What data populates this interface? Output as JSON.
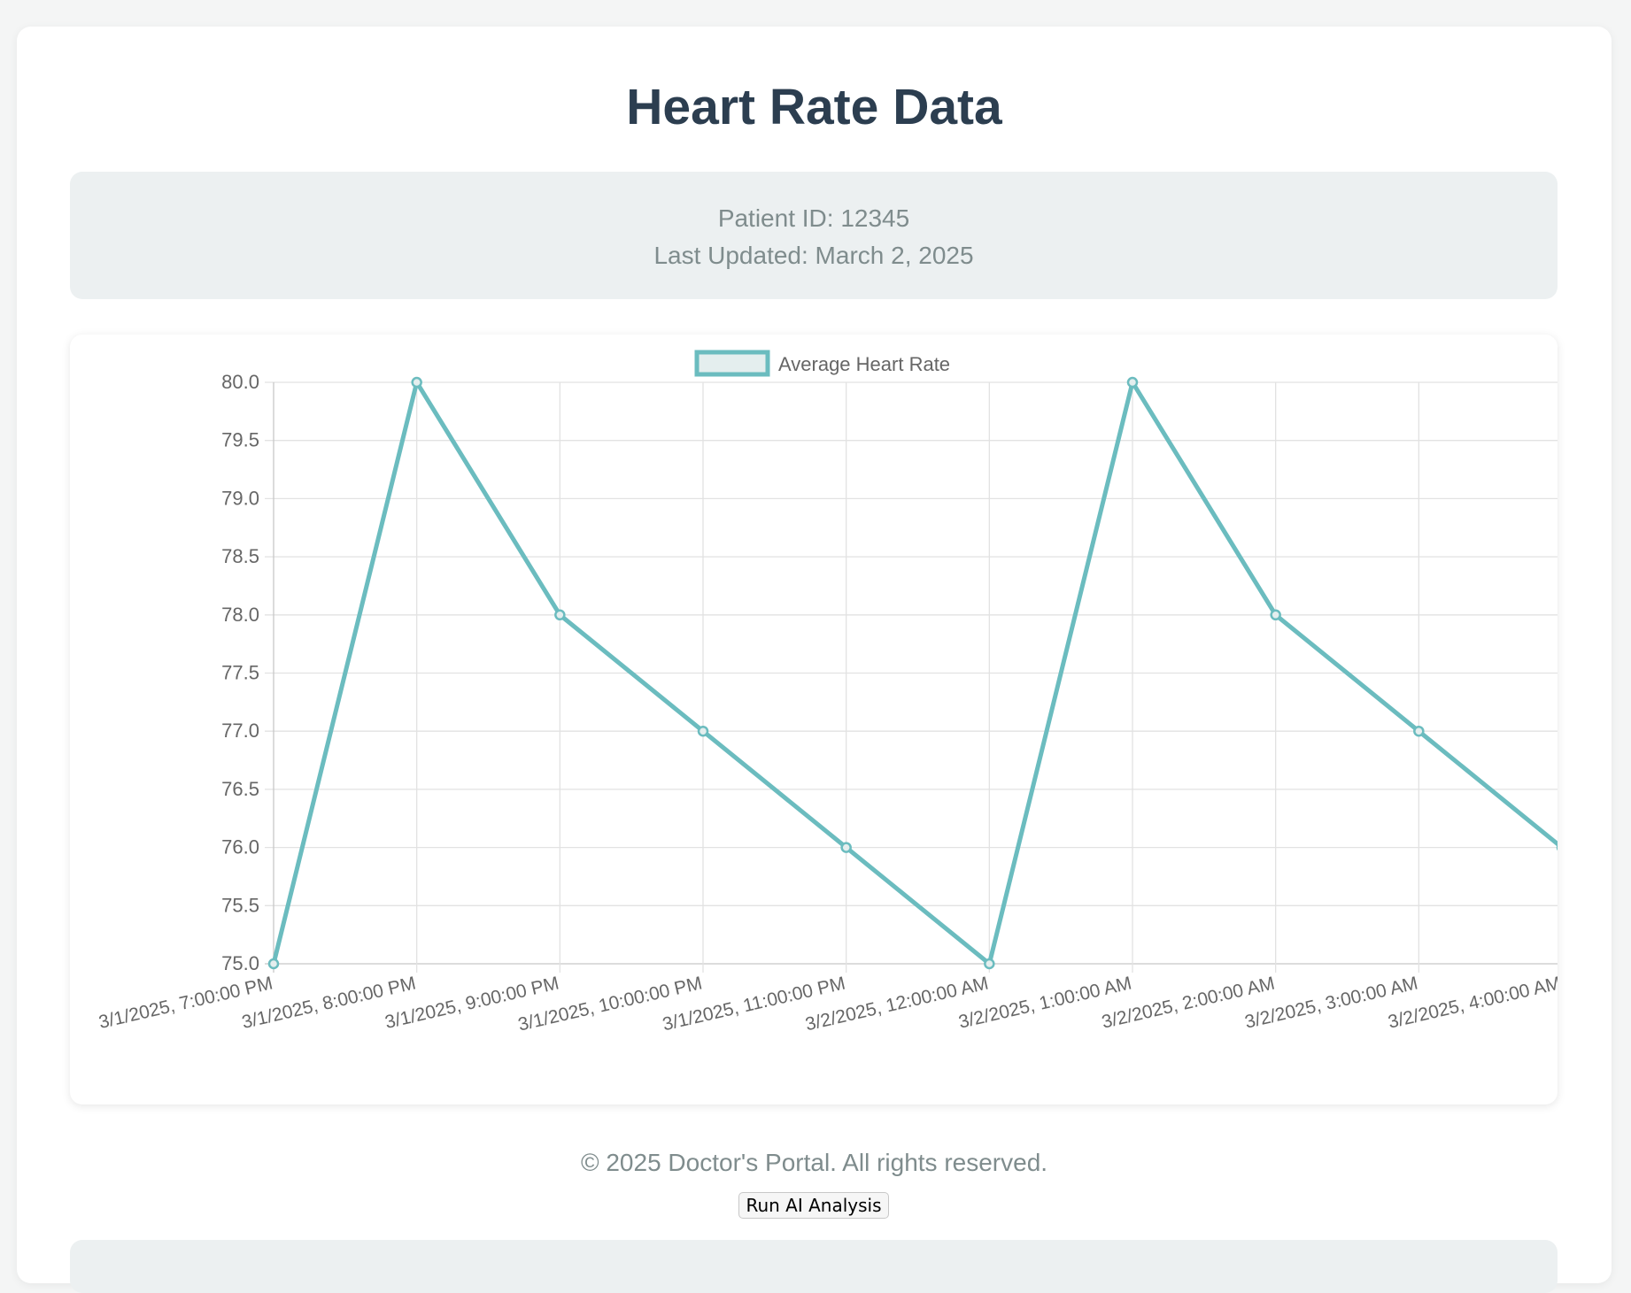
{
  "page": {
    "title": "Heart Rate Data"
  },
  "patient": {
    "id_text": "Patient ID: 12345",
    "updated_text": "Last Updated: March 2, 2025"
  },
  "colors": {
    "series": "#6bbcbf",
    "title": "#2c3e50",
    "muted": "#7f8c8d"
  },
  "chart_data": {
    "type": "line",
    "legend_position": "top-center",
    "grid": true,
    "x": [
      "3/1/2025, 7:00:00 PM",
      "3/1/2025, 8:00:00 PM",
      "3/1/2025, 9:00:00 PM",
      "3/1/2025, 10:00:00 PM",
      "3/1/2025, 11:00:00 PM",
      "3/2/2025, 12:00:00 AM",
      "3/2/2025, 1:00:00 AM",
      "3/2/2025, 2:00:00 AM",
      "3/2/2025, 3:00:00 AM",
      "3/2/2025, 4:00:00 AM"
    ],
    "series": [
      {
        "name": "Average Heart Rate",
        "values": [
          75,
          80,
          78,
          77,
          76,
          75,
          80,
          78,
          77,
          76
        ]
      }
    ],
    "ylim": [
      75,
      80
    ],
    "yticks": [
      "75.0",
      "75.5",
      "76.0",
      "76.5",
      "77.0",
      "77.5",
      "78.0",
      "78.5",
      "79.0",
      "79.5",
      "80.0"
    ],
    "xlabel": "",
    "ylabel": ""
  },
  "footer": {
    "copyright": "© 2025 Doctor's Portal. All rights reserved.",
    "button_label": "Run AI Analysis"
  }
}
